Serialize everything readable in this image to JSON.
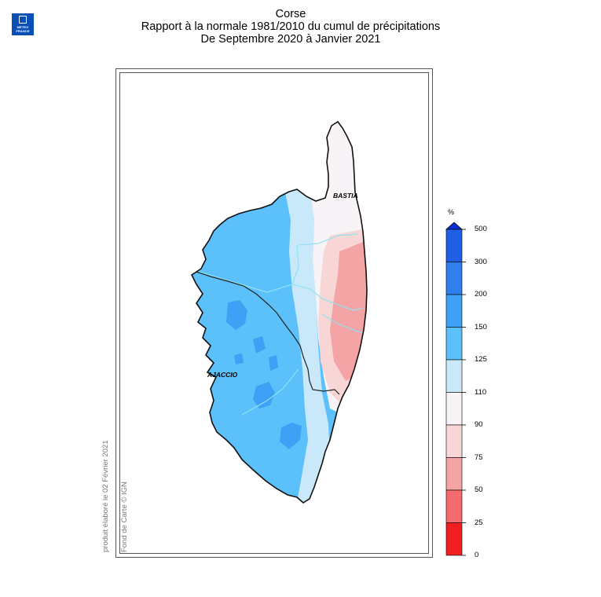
{
  "header": {
    "logo_line1": "METEO",
    "logo_line2": "FRANCE",
    "title": "Corse",
    "subtitle": "Rapport à la normale 1981/2010 du cumul de précipitations",
    "period": "De Septembre 2020 à Janvier 2021"
  },
  "map": {
    "cities": {
      "bastia": "BASTIA",
      "ajaccio": "AJACCIO"
    },
    "credit_produced": "produit élaboré le 02 Février 2021",
    "credit_basemap": "Fond de Carte © IGN"
  },
  "legend": {
    "unit": "%",
    "ticks": [
      "500",
      "300",
      "200",
      "150",
      "125",
      "110",
      "90",
      "75",
      "50",
      "25",
      "0"
    ],
    "colors": [
      "#0a2fd8",
      "#1f5fe6",
      "#2f80ee",
      "#3ea1f5",
      "#5cc0fa",
      "#c9e9fb",
      "#f7f3f6",
      "#f8d6d6",
      "#f5a4a6",
      "#f56b6d",
      "#f12020"
    ]
  }
}
